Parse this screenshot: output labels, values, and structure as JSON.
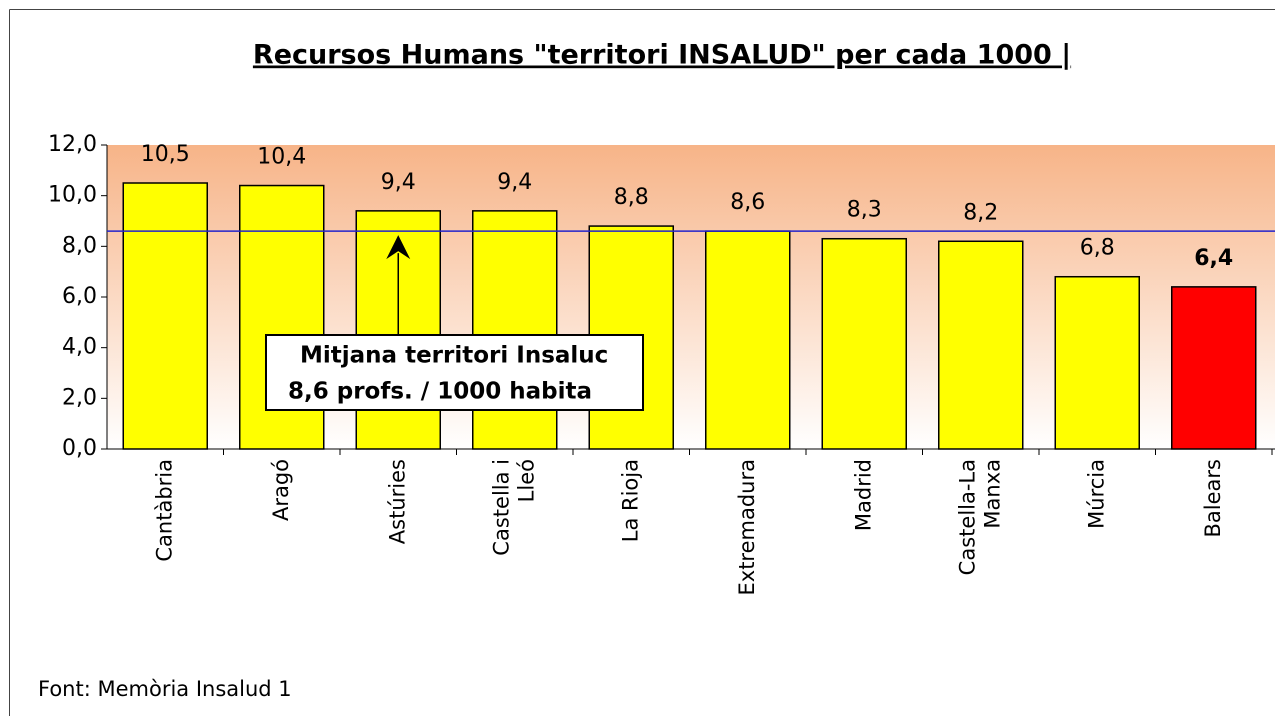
{
  "chart_data": {
    "type": "bar",
    "title": "Recursos Humans \"territori INSALUD\" per cada 1000 |",
    "categories": [
      "Cantàbria",
      "Aragó",
      "Astúries",
      "Castella i Lleó",
      "La Rioja",
      "Extremadura",
      "Madrid",
      "Castella-La Manxa",
      "Múrcia",
      "Balears"
    ],
    "values": [
      10.5,
      10.4,
      9.4,
      9.4,
      8.8,
      8.6,
      8.3,
      8.2,
      6.8,
      6.4
    ],
    "value_labels": [
      "10,5",
      "10,4",
      "9,4",
      "9,4",
      "8,8",
      "8,6",
      "8,3",
      "8,2",
      "6,8",
      "6,4"
    ],
    "colors": [
      "#ffff00",
      "#ffff00",
      "#ffff00",
      "#ffff00",
      "#ffff00",
      "#ffff00",
      "#ffff00",
      "#ffff00",
      "#ffff00",
      "#ff0000"
    ],
    "ylim": [
      0,
      12
    ],
    "yticks": [
      {
        "value": 0,
        "label": "0,0"
      },
      {
        "value": 2,
        "label": "2,0"
      },
      {
        "value": 4,
        "label": "4,0"
      },
      {
        "value": 6,
        "label": "6,0"
      },
      {
        "value": 8,
        "label": "8,0"
      },
      {
        "value": 10,
        "label": "10,0"
      },
      {
        "value": 12,
        "label": "12,0"
      }
    ],
    "reference_line": {
      "value": 8.6,
      "color": "#2222cc"
    },
    "annotation": [
      "Mitjana territori Insaluc",
      "8,6 profs. / 1000 habita"
    ],
    "source": "Font: Memòria Insalud 1"
  }
}
